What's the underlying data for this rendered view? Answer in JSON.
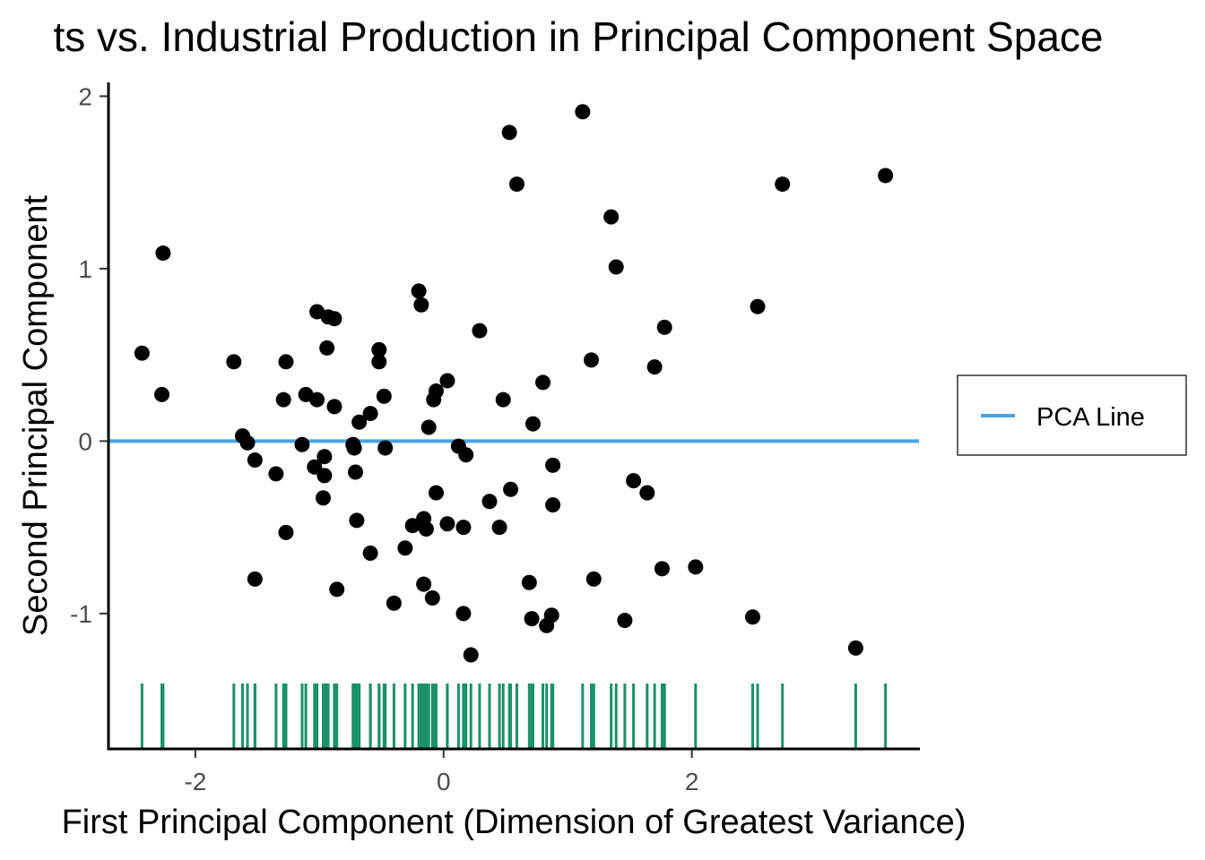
{
  "chart_data": {
    "type": "scatter",
    "title": "ts vs. Industrial Production in Principal Component Space",
    "xlabel": "First Principal Component (Dimension of Greatest Variance)",
    "ylabel": "Second Principal Component",
    "xlim": [
      -2.7,
      3.83
    ],
    "ylim": [
      -1.78,
      2.08
    ],
    "x_ticks": [
      {
        "value": -2,
        "label": "-2"
      },
      {
        "value": 0,
        "label": "0"
      },
      {
        "value": 2,
        "label": "2"
      }
    ],
    "y_ticks": [
      {
        "value": -1,
        "label": "-1"
      },
      {
        "value": 0,
        "label": "0"
      },
      {
        "value": 1,
        "label": "1"
      },
      {
        "value": 2,
        "label": "2"
      }
    ],
    "grid": false,
    "legend": {
      "position": "right",
      "entries": [
        {
          "label": "PCA Line",
          "color": "#4aa3df"
        }
      ]
    },
    "colors": {
      "points": "#000000",
      "pca_line": "#4aa3df",
      "rug": "#1b9168"
    },
    "pca_line": {
      "y": 0
    },
    "rug": {
      "axis": "x",
      "values": "same as point x values"
    },
    "points": [
      {
        "x": -2.43,
        "y": 0.51
      },
      {
        "x": -2.26,
        "y": 1.09
      },
      {
        "x": -2.27,
        "y": 0.27
      },
      {
        "x": -1.69,
        "y": 0.46
      },
      {
        "x": -1.62,
        "y": 0.03
      },
      {
        "x": -1.58,
        "y": -0.01
      },
      {
        "x": -1.52,
        "y": -0.11
      },
      {
        "x": -1.52,
        "y": -0.8
      },
      {
        "x": -1.35,
        "y": -0.19
      },
      {
        "x": -1.29,
        "y": 0.24
      },
      {
        "x": -1.27,
        "y": 0.46
      },
      {
        "x": -1.27,
        "y": -0.53
      },
      {
        "x": -1.14,
        "y": -0.02
      },
      {
        "x": -1.11,
        "y": 0.27
      },
      {
        "x": -1.04,
        "y": -0.15
      },
      {
        "x": -1.02,
        "y": 0.75
      },
      {
        "x": -1.02,
        "y": 0.24
      },
      {
        "x": -0.96,
        "y": -0.09
      },
      {
        "x": -0.97,
        "y": -0.33
      },
      {
        "x": -0.96,
        "y": -0.2
      },
      {
        "x": -0.93,
        "y": 0.72
      },
      {
        "x": -0.94,
        "y": 0.54
      },
      {
        "x": -0.88,
        "y": 0.71
      },
      {
        "x": -0.88,
        "y": 0.2
      },
      {
        "x": -0.86,
        "y": -0.86
      },
      {
        "x": -0.73,
        "y": -0.02
      },
      {
        "x": -0.72,
        "y": -0.04
      },
      {
        "x": -0.71,
        "y": -0.18
      },
      {
        "x": -0.7,
        "y": -0.46
      },
      {
        "x": -0.68,
        "y": 0.11
      },
      {
        "x": -0.59,
        "y": 0.16
      },
      {
        "x": -0.59,
        "y": -0.65
      },
      {
        "x": -0.52,
        "y": 0.53
      },
      {
        "x": -0.52,
        "y": 0.46
      },
      {
        "x": -0.48,
        "y": 0.26
      },
      {
        "x": -0.47,
        "y": -0.04
      },
      {
        "x": -0.4,
        "y": -0.94
      },
      {
        "x": -0.31,
        "y": -0.62
      },
      {
        "x": -0.25,
        "y": -0.49
      },
      {
        "x": -0.2,
        "y": 0.87
      },
      {
        "x": -0.18,
        "y": 0.79
      },
      {
        "x": -0.16,
        "y": -0.83
      },
      {
        "x": -0.16,
        "y": -0.45
      },
      {
        "x": -0.14,
        "y": -0.51
      },
      {
        "x": -0.12,
        "y": 0.08
      },
      {
        "x": -0.09,
        "y": -0.91
      },
      {
        "x": -0.08,
        "y": 0.24
      },
      {
        "x": -0.06,
        "y": 0.29
      },
      {
        "x": -0.06,
        "y": -0.3
      },
      {
        "x": 0.03,
        "y": 0.35
      },
      {
        "x": 0.03,
        "y": -0.48
      },
      {
        "x": 0.12,
        "y": -0.03
      },
      {
        "x": 0.16,
        "y": -1.0
      },
      {
        "x": 0.16,
        "y": -0.5
      },
      {
        "x": 0.18,
        "y": -0.08
      },
      {
        "x": 0.22,
        "y": -1.24
      },
      {
        "x": 0.29,
        "y": 0.64
      },
      {
        "x": 0.37,
        "y": -0.35
      },
      {
        "x": 0.45,
        "y": -0.5
      },
      {
        "x": 0.48,
        "y": 0.24
      },
      {
        "x": 0.53,
        "y": 1.79
      },
      {
        "x": 0.54,
        "y": -0.28
      },
      {
        "x": 0.59,
        "y": 1.49
      },
      {
        "x": 0.69,
        "y": -0.82
      },
      {
        "x": 0.71,
        "y": -1.03
      },
      {
        "x": 0.72,
        "y": 0.1
      },
      {
        "x": 0.8,
        "y": 0.34
      },
      {
        "x": 0.83,
        "y": -1.07
      },
      {
        "x": 0.87,
        "y": -1.01
      },
      {
        "x": 0.88,
        "y": -0.14
      },
      {
        "x": 0.88,
        "y": -0.37
      },
      {
        "x": 1.12,
        "y": 1.91
      },
      {
        "x": 1.19,
        "y": 0.47
      },
      {
        "x": 1.21,
        "y": -0.8
      },
      {
        "x": 1.35,
        "y": 1.3
      },
      {
        "x": 1.39,
        "y": 1.01
      },
      {
        "x": 1.46,
        "y": -1.04
      },
      {
        "x": 1.53,
        "y": -0.23
      },
      {
        "x": 1.64,
        "y": -0.3
      },
      {
        "x": 1.7,
        "y": 0.43
      },
      {
        "x": 1.76,
        "y": -0.74
      },
      {
        "x": 1.78,
        "y": 0.66
      },
      {
        "x": 2.03,
        "y": -0.73
      },
      {
        "x": 2.49,
        "y": -1.02
      },
      {
        "x": 2.53,
        "y": 0.78
      },
      {
        "x": 2.73,
        "y": 1.49
      },
      {
        "x": 3.32,
        "y": -1.2
      },
      {
        "x": 3.56,
        "y": 1.54
      }
    ]
  }
}
